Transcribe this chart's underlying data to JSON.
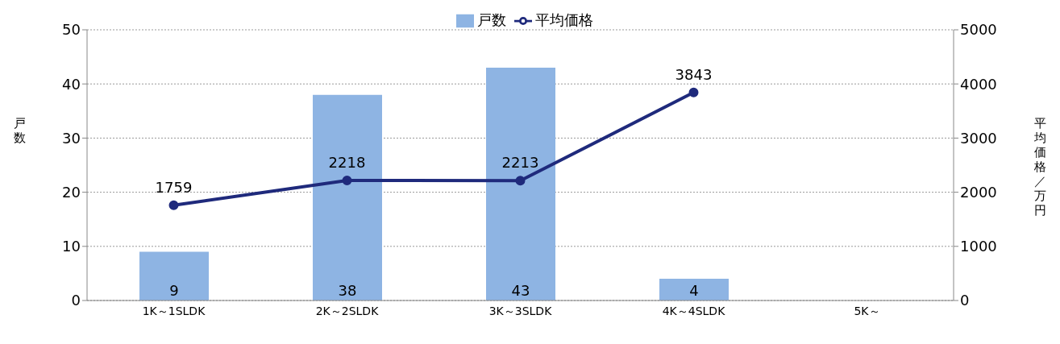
{
  "chart_data": {
    "type": "bar",
    "categories": [
      "1K～1SLDK",
      "2K～2SLDK",
      "3K～3SLDK",
      "4K～4SLDK",
      "5K～"
    ],
    "series": [
      {
        "name": "戸数",
        "color": "#8eb4e3",
        "values": [
          9,
          38,
          43,
          4,
          null
        ]
      },
      {
        "name": "平均価格",
        "type": "line",
        "axis": "y2",
        "color": "#1f2a7c",
        "values": [
          1759,
          2218,
          2213,
          3843,
          null
        ]
      }
    ],
    "ylabel": "戸数",
    "y2label": "平均価格／万円",
    "ylim": [
      0,
      50
    ],
    "yticks": [
      0,
      10,
      20,
      30,
      40,
      50
    ],
    "y2lim": [
      0,
      5000
    ],
    "y2ticks": [
      0,
      1000,
      2000,
      3000,
      4000,
      5000
    ],
    "grid": "y",
    "legend": "top",
    "marker": "circle",
    "line_style": "solid",
    "data_labels": true
  }
}
